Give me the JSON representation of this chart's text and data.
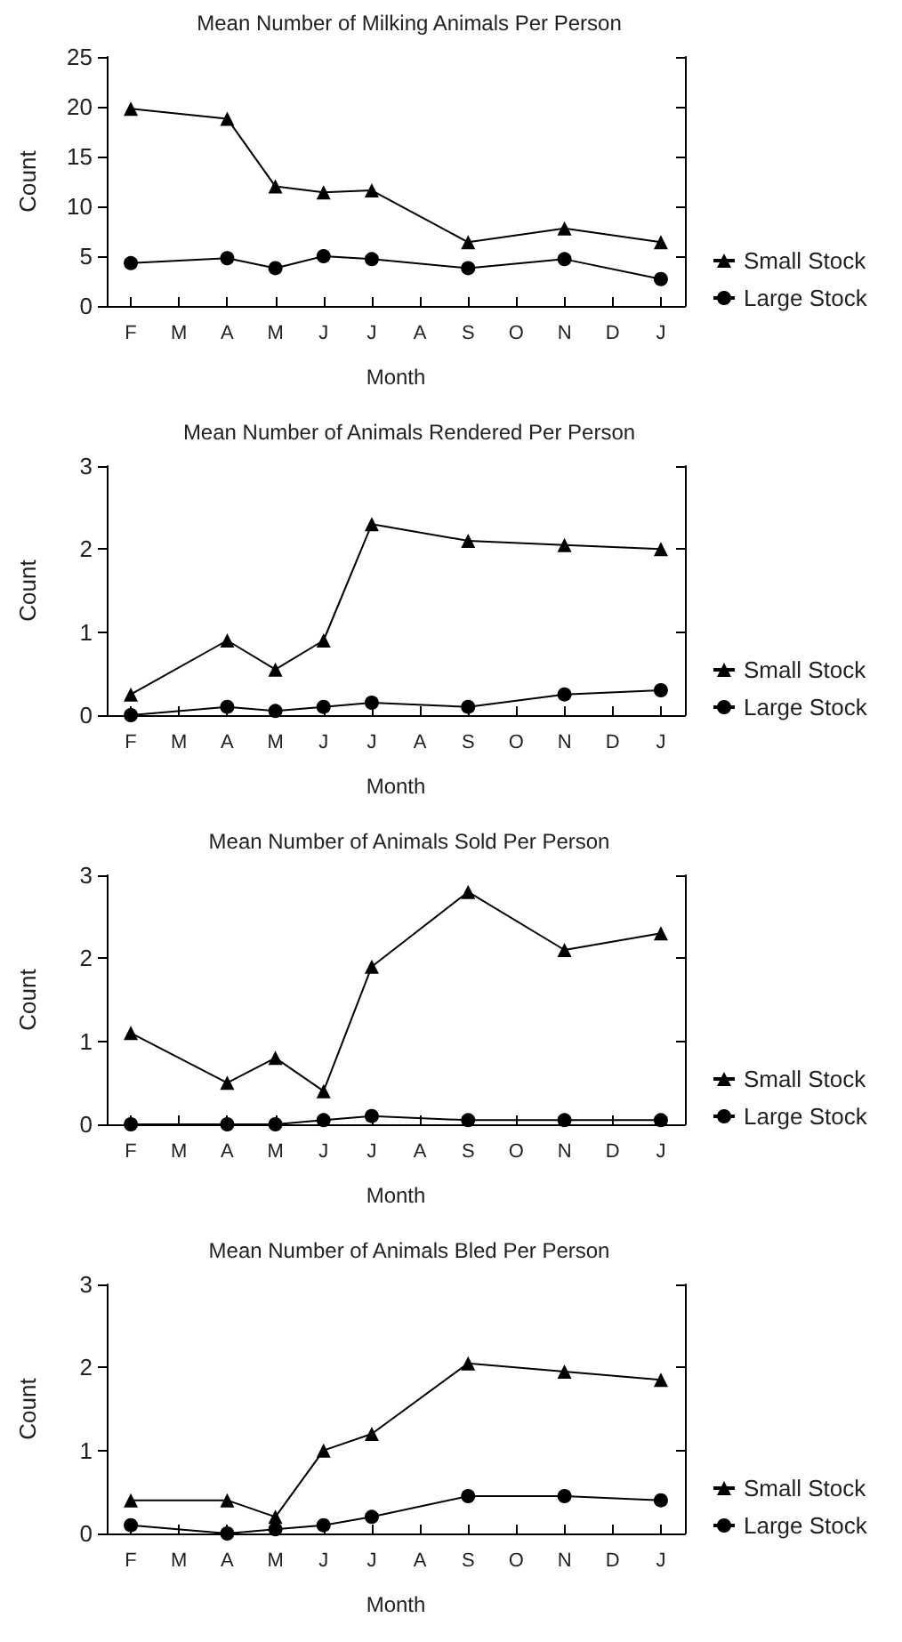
{
  "chart_data": [
    {
      "type": "line",
      "title": "Mean Number of Milking Animals Per Person",
      "xlabel": "Month",
      "ylabel": "Count",
      "categories": [
        "F",
        "M",
        "A",
        "M",
        "J",
        "J",
        "A",
        "S",
        "O",
        "N",
        "D",
        "J"
      ],
      "ylim": [
        0,
        25
      ],
      "yticks": [
        0,
        5,
        10,
        15,
        20,
        25
      ],
      "grid": false,
      "legend": "right",
      "series": [
        {
          "name": "Small Stock",
          "color": "#000000",
          "marker": "triangle",
          "values": [
            19.8,
            null,
            18.8,
            12,
            11.4,
            11.6,
            null,
            6.4,
            null,
            7.8,
            null,
            6.4
          ]
        },
        {
          "name": "Large Stock",
          "color": "#000000",
          "marker": "circle",
          "values": [
            4.3,
            null,
            4.8,
            3.8,
            5.0,
            4.7,
            null,
            3.8,
            null,
            4.7,
            null,
            2.7
          ]
        }
      ]
    },
    {
      "type": "line",
      "title": "Mean Number of Animals Rendered Per Person",
      "xlabel": "Month",
      "ylabel": "Count",
      "categories": [
        "F",
        "M",
        "A",
        "M",
        "J",
        "J",
        "A",
        "S",
        "O",
        "N",
        "D",
        "J"
      ],
      "ylim": [
        0,
        3
      ],
      "yticks": [
        0,
        1,
        2,
        3
      ],
      "grid": false,
      "legend": "right",
      "series": [
        {
          "name": "Small Stock",
          "color": "#000000",
          "marker": "triangle",
          "values": [
            0.25,
            null,
            0.9,
            0.55,
            0.9,
            2.3,
            null,
            2.1,
            null,
            2.05,
            null,
            2.0
          ]
        },
        {
          "name": "Large Stock",
          "color": "#000000",
          "marker": "circle",
          "values": [
            0,
            null,
            0.1,
            0.05,
            0.1,
            0.15,
            null,
            0.1,
            null,
            0.25,
            null,
            0.3
          ]
        }
      ]
    },
    {
      "type": "line",
      "title": "Mean Number of Animals Sold Per Person",
      "xlabel": "Month",
      "ylabel": "Count",
      "categories": [
        "F",
        "M",
        "A",
        "M",
        "J",
        "J",
        "A",
        "S",
        "O",
        "N",
        "D",
        "J"
      ],
      "ylim": [
        0,
        3
      ],
      "yticks": [
        0,
        1,
        2,
        3
      ],
      "grid": false,
      "legend": "right",
      "series": [
        {
          "name": "Small Stock",
          "color": "#000000",
          "marker": "triangle",
          "values": [
            1.1,
            null,
            0.5,
            0.8,
            0.4,
            1.9,
            null,
            2.8,
            null,
            2.1,
            null,
            2.3
          ]
        },
        {
          "name": "Large Stock",
          "color": "#000000",
          "marker": "circle",
          "values": [
            0,
            null,
            0,
            0,
            0.05,
            0.1,
            null,
            0.05,
            null,
            0.05,
            null,
            0.05
          ]
        }
      ]
    },
    {
      "type": "line",
      "title": "Mean Number of Animals Bled Per Person",
      "xlabel": "Month",
      "ylabel": "Count",
      "categories": [
        "F",
        "M",
        "A",
        "M",
        "J",
        "J",
        "A",
        "S",
        "O",
        "N",
        "D",
        "J"
      ],
      "ylim": [
        0,
        3
      ],
      "yticks": [
        0,
        1,
        2,
        3
      ],
      "grid": false,
      "legend": "right",
      "series": [
        {
          "name": "Small Stock",
          "color": "#000000",
          "marker": "triangle",
          "values": [
            0.4,
            null,
            0.4,
            0.2,
            1.0,
            1.2,
            null,
            2.05,
            null,
            1.95,
            null,
            1.85
          ]
        },
        {
          "name": "Large Stock",
          "color": "#000000",
          "marker": "circle",
          "values": [
            0.1,
            null,
            0,
            0.05,
            0.1,
            0.2,
            null,
            0.45,
            null,
            0.45,
            null,
            0.4
          ]
        }
      ]
    }
  ]
}
